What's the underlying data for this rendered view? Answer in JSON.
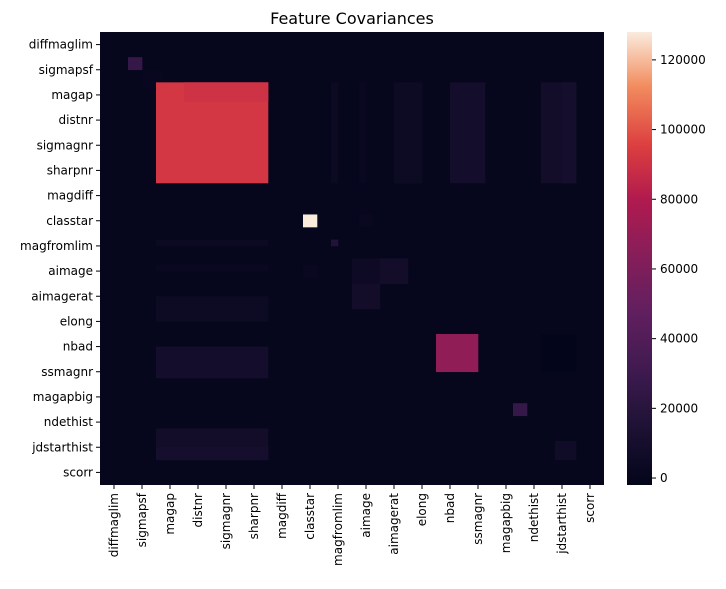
{
  "chart_data": {
    "type": "heatmap",
    "title": "Feature Covariances",
    "x_tick_labels": [
      "diffmaglim",
      "sigmapsf",
      "magap",
      "distnr",
      "sigmagnr",
      "sharpnr",
      "magdiff",
      "classtar",
      "magfromlim",
      "aimage",
      "aimagerat",
      "elong",
      "nbad",
      "ssmagnr",
      "magapbig",
      "ndethist",
      "jdstarthist",
      "scorr"
    ],
    "y_tick_labels": [
      "diffmaglim",
      "sigmapsf",
      "magap",
      "distnr",
      "sigmagnr",
      "sharpnr",
      "magdiff",
      "classtar",
      "magfromlim",
      "aimage",
      "aimagerat",
      "elong",
      "nbad",
      "ssmagnr",
      "magapbig",
      "ndethist",
      "jdstarthist",
      "scorr"
    ],
    "colorbar": {
      "min": -2000,
      "max": 128000,
      "ticks": [
        0,
        20000,
        40000,
        60000,
        80000,
        100000,
        120000
      ],
      "colormap": "rocket"
    },
    "blocks": [
      {
        "rows": [
          6,
          9
        ],
        "cols": [
          6,
          9
        ],
        "value": 1200
      },
      {
        "rows": [
          10,
          14
        ],
        "cols": [
          10,
          14
        ],
        "value": 2500
      },
      {
        "rows": [
          18,
          20
        ],
        "cols": [
          18,
          20
        ],
        "value": 1800
      },
      {
        "rows": [
          22,
          24
        ],
        "cols": [
          22,
          24
        ],
        "value": 2500
      },
      {
        "rows": [
          33,
          34
        ],
        "cols": [
          33,
          34
        ],
        "value": 16000
      },
      {
        "rows": [
          8,
          24
        ],
        "cols": [
          33,
          34
        ],
        "value": 3500
      },
      {
        "rows": [
          33,
          34
        ],
        "cols": [
          8,
          24
        ],
        "value": 3500
      },
      {
        "rows": [
          8,
          24
        ],
        "cols": [
          37,
          38
        ],
        "value": 2500
      },
      {
        "rows": [
          37,
          38
        ],
        "cols": [
          8,
          24
        ],
        "value": 2500
      },
      {
        "rows": [
          36,
          40
        ],
        "cols": [
          36,
          40
        ],
        "value": 5000
      },
      {
        "rows": [
          40,
          44
        ],
        "cols": [
          36,
          40
        ],
        "value": 8000
      },
      {
        "rows": [
          36,
          40
        ],
        "cols": [
          40,
          44
        ],
        "value": 8000
      },
      {
        "rows": [
          8,
          24
        ],
        "cols": [
          42,
          46
        ],
        "value": 4500
      },
      {
        "rows": [
          42,
          46
        ],
        "cols": [
          8,
          24
        ],
        "value": 4500
      },
      {
        "rows": [
          8,
          24
        ],
        "cols": [
          50,
          55
        ],
        "value": 9000
      },
      {
        "rows": [
          50,
          55
        ],
        "cols": [
          8,
          24
        ],
        "value": 9000
      },
      {
        "rows": [
          8,
          24
        ],
        "cols": [
          63,
          68
        ],
        "value": 8000
      },
      {
        "rows": [
          63,
          68
        ],
        "cols": [
          8,
          24
        ],
        "value": 8000
      },
      {
        "rows": [
          8,
          24
        ],
        "cols": [
          66,
          68
        ],
        "value": 10000
      },
      {
        "rows": [
          66,
          68
        ],
        "cols": [
          8,
          24
        ],
        "value": 10000
      },
      {
        "rows": [
          48,
          54
        ],
        "cols": [
          63,
          68
        ],
        "value": -2000
      },
      {
        "rows": [
          48,
          54
        ],
        "cols": [
          48,
          54
        ],
        "value": 68000
      },
      {
        "rows": [
          65,
          68
        ],
        "cols": [
          65,
          68
        ],
        "value": 6000
      },
      {
        "rows": [
          8,
          24
        ],
        "cols": [
          8,
          24
        ],
        "value": 92000
      },
      {
        "rows": [
          8,
          11
        ],
        "cols": [
          12,
          24
        ],
        "value": 90000
      },
      {
        "rows": [
          4,
          6
        ],
        "cols": [
          4,
          6
        ],
        "value": 26000
      },
      {
        "rows": [
          59,
          61
        ],
        "cols": [
          59,
          61
        ],
        "value": 26000
      },
      {
        "rows": [
          29,
          31
        ],
        "cols": [
          29,
          31
        ],
        "value": 128000
      },
      {
        "rows": [
          37,
          39
        ],
        "cols": [
          29,
          31
        ],
        "value": 2500
      },
      {
        "rows": [
          29,
          31
        ],
        "cols": [
          37,
          39
        ],
        "value": 2500
      }
    ],
    "grid_size": 72
  }
}
